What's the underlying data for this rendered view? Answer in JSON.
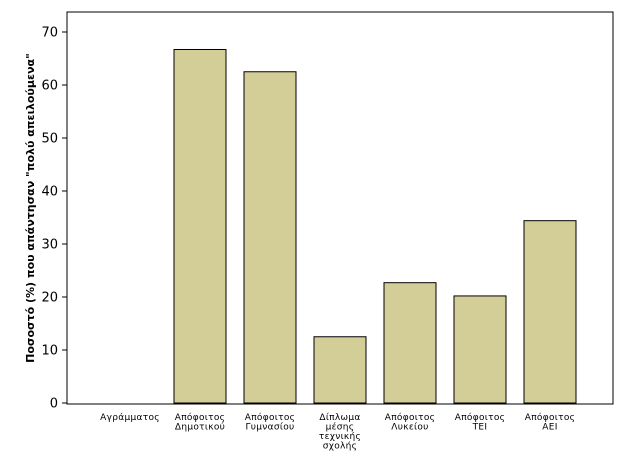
{
  "chart_data": {
    "type": "bar",
    "categories": [
      [
        "Αγράμματος"
      ],
      [
        "Απόφοιτος",
        "Δημοτικού"
      ],
      [
        "Απόφοιτος",
        "Γυμνασίου"
      ],
      [
        "Δίπλωμα",
        "μέσης",
        "τεχνικής",
        "σχολής"
      ],
      [
        "Απόφοιτος",
        "Λυκείου"
      ],
      [
        "Απόφοιτος",
        "ΤΕΙ"
      ],
      [
        "Απόφοιτος",
        "ΑΕΙ"
      ]
    ],
    "values": [
      0,
      66.7,
      62.5,
      12.5,
      22.7,
      20.2,
      34.4
    ],
    "ylabel": "Ποσοστό (%) που απάντησαν \"πολύ απειλούμενα\"",
    "xlabel": "",
    "ylim": [
      0,
      70
    ],
    "yticks": [
      0,
      10,
      20,
      30,
      40,
      50,
      60,
      70
    ],
    "grid": false,
    "colors": {
      "bar_fill": "#d3ce98",
      "bar_stroke": "#000000",
      "axis": "#000000",
      "frame": "#000000"
    }
  }
}
